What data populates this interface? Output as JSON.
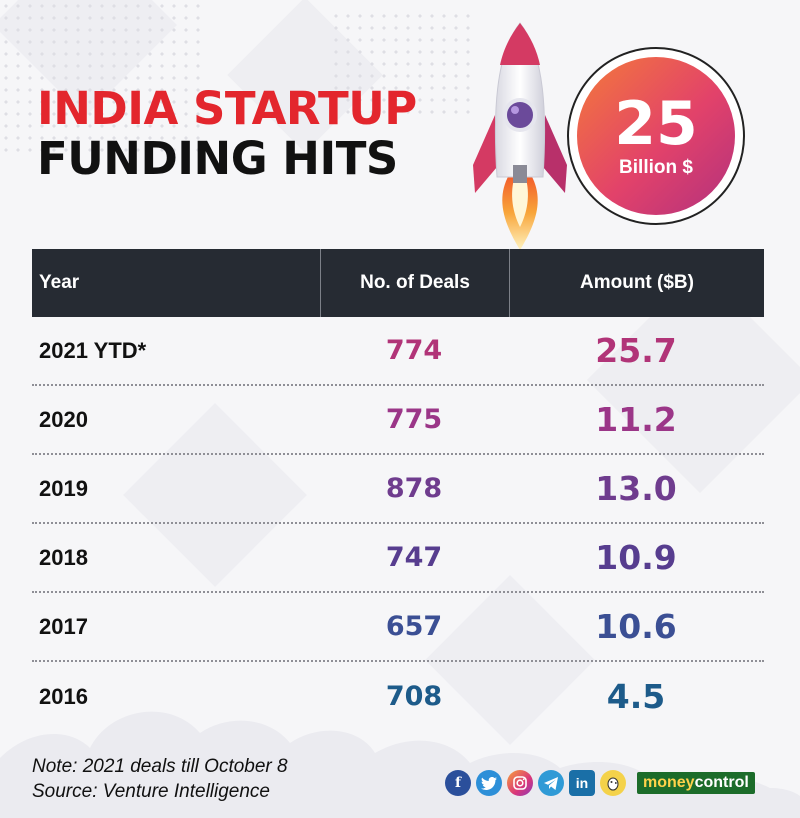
{
  "header": {
    "title_line1": "INDIA STARTUP",
    "title_line2": "FUNDING HITS"
  },
  "badge": {
    "value": "25",
    "unit": "Billion $"
  },
  "chart_data": {
    "type": "table",
    "columns": [
      "Year",
      "No. of Deals",
      "Amount ($B)"
    ],
    "rows": [
      {
        "year": "2021 YTD*",
        "deals": "774",
        "amount": "25.7"
      },
      {
        "year": "2020",
        "deals": "775",
        "amount": "11.2"
      },
      {
        "year": "2019",
        "deals": "878",
        "amount": "13.0"
      },
      {
        "year": "2018",
        "deals": "747",
        "amount": "10.9"
      },
      {
        "year": "2017",
        "deals": "657",
        "amount": "10.6"
      },
      {
        "year": "2016",
        "deals": "708",
        "amount": "4.5"
      }
    ],
    "row_colors": [
      "#b13478",
      "#9b3688",
      "#6f3c8e",
      "#573d8f",
      "#3b4f94",
      "#1d5b8a"
    ]
  },
  "footer": {
    "note": "Note: 2021 deals till October 8",
    "source": "Source: Venture Intelligence"
  },
  "social": {
    "icons": [
      "facebook-icon",
      "twitter-icon",
      "instagram-icon",
      "telegram-icon",
      "linkedin-icon",
      "koo-icon"
    ],
    "brand_part1": "money",
    "brand_part2": "control"
  }
}
